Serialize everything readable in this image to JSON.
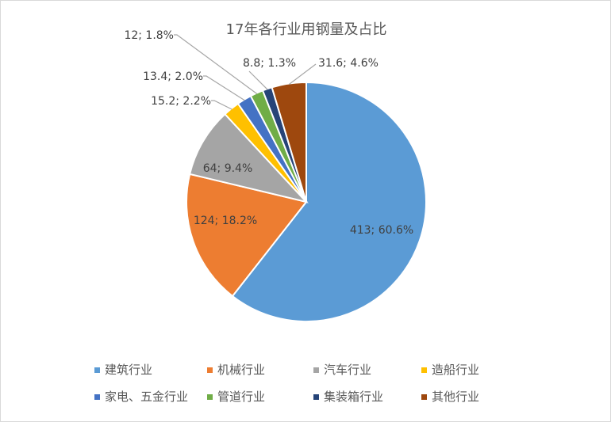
{
  "chart_data": {
    "type": "pie",
    "title": "17年各行业用钢量及占比",
    "categories": [
      "建筑行业",
      "机械行业",
      "汽车行业",
      "造船行业",
      "家电、五金行业",
      "管道行业",
      "集装箱行业",
      "其他行业"
    ],
    "values": [
      413,
      124,
      64,
      15.2,
      13.4,
      12,
      8.8,
      31.6
    ],
    "percents": [
      "60.6%",
      "18.2%",
      "9.4%",
      "2.2%",
      "2.0%",
      "1.8%",
      "1.3%",
      "4.6%"
    ],
    "data_labels": [
      "413; 60.6%",
      "124; 18.2%",
      "64; 9.4%",
      "15.2; 2.2%",
      "13.4; 2.0%",
      "12; 1.8%",
      "8.8; 1.3%",
      "31.6; 4.6%"
    ],
    "colors": [
      "#5b9bd5",
      "#ed7d31",
      "#a5a5a5",
      "#ffc000",
      "#4472c4",
      "#70ad47",
      "#264478",
      "#9e480e"
    ],
    "legend_position": "bottom"
  }
}
